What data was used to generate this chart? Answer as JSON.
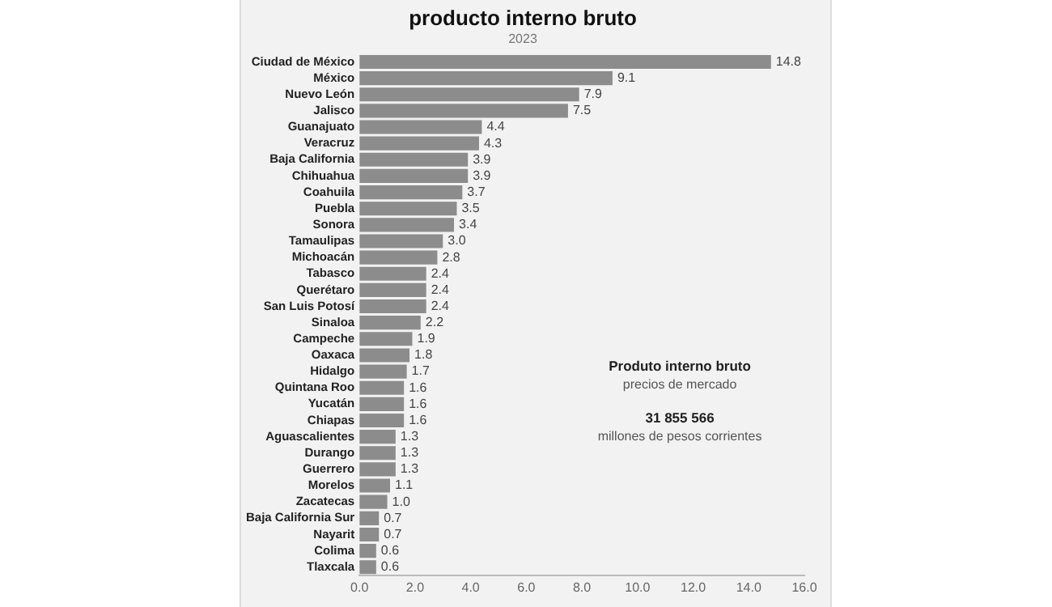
{
  "chart_data": {
    "type": "bar",
    "orientation": "horizontal",
    "title": "producto interno bruto",
    "subtitle": "2023",
    "categories": [
      "Ciudad de México",
      "México",
      "Nuevo León",
      "Jalisco",
      "Guanajuato",
      "Veracruz",
      "Baja California",
      "Chihuahua",
      "Coahuila",
      "Puebla",
      "Sonora",
      "Tamaulipas",
      "Michoacán",
      "Tabasco",
      "Querétaro",
      "San Luis Potosí",
      "Sinaloa",
      "Campeche",
      "Oaxaca",
      "Hidalgo",
      "Quintana Roo",
      "Yucatán",
      "Chiapas",
      "Aguascalientes",
      "Durango",
      "Guerrero",
      "Morelos",
      "Zacatecas",
      "Baja California Sur",
      "Nayarit",
      "Colima",
      "Tlaxcala"
    ],
    "values": [
      14.8,
      9.1,
      7.9,
      7.5,
      4.4,
      4.3,
      3.9,
      3.9,
      3.7,
      3.5,
      3.4,
      3.0,
      2.8,
      2.4,
      2.4,
      2.4,
      2.2,
      1.9,
      1.8,
      1.7,
      1.6,
      1.6,
      1.6,
      1.3,
      1.3,
      1.3,
      1.1,
      1.0,
      0.7,
      0.7,
      0.6,
      0.6
    ],
    "value_labels": [
      "14.8",
      "9.1",
      "7.9",
      "7.5",
      "4.4",
      "4.3",
      "3.9",
      "3.9",
      "3.7",
      "3.5",
      "3.4",
      "3.0",
      "2.8",
      "2.4",
      "2.4",
      "2.4",
      "2.2",
      "1.9",
      "1.8",
      "1.7",
      "1.6",
      "1.6",
      "1.6",
      "1.3",
      "1.3",
      "1.3",
      "1.1",
      "1.0",
      "0.7",
      "0.7",
      "0.6",
      "0.6"
    ],
    "color": "#8c8c8c",
    "xlim": [
      0,
      16
    ],
    "xticks": [
      {
        "value": 0,
        "label": "0.0"
      },
      {
        "value": 2,
        "label": "2.0"
      },
      {
        "value": 4,
        "label": "4.0"
      },
      {
        "value": 6,
        "label": "6.0"
      },
      {
        "value": 8,
        "label": "8.0"
      },
      {
        "value": 10,
        "label": "10.0"
      },
      {
        "value": 12,
        "label": "12.0"
      },
      {
        "value": 14,
        "label": "14.0"
      },
      {
        "value": 16,
        "label": "16.0"
      }
    ],
    "grid": false,
    "annotations": [
      "Produto interno bruto",
      "precios de mercado",
      "31 855 566",
      "millones de pesos corrientes"
    ]
  }
}
